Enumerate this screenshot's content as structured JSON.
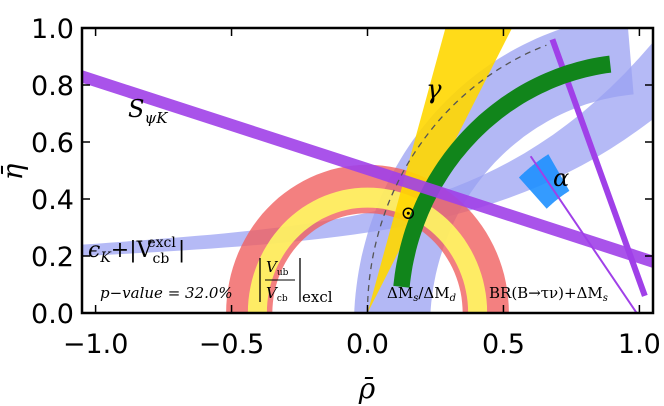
{
  "chart_data": {
    "type": "area",
    "xlabel": "ρ̄",
    "ylabel": "η̄",
    "xlim": [
      -1.05,
      1.05
    ],
    "ylim": [
      0.0,
      1.0
    ],
    "xticks": [
      "−1.0",
      "−0.5",
      "0.0",
      "0.5",
      "1.0"
    ],
    "xtick_values": [
      -1.0,
      -0.5,
      0.0,
      0.5,
      1.0
    ],
    "yticks": [
      "0.0",
      "0.2",
      "0.4",
      "0.6",
      "0.8",
      "1.0"
    ],
    "ytick_values": [
      0.0,
      0.2,
      0.4,
      0.6,
      0.8,
      1.0
    ],
    "grid": false,
    "apex": {
      "rho": 0.15,
      "eta": 0.35
    },
    "constraints": [
      {
        "name": "S_ψK",
        "color": "#a040e8",
        "shape": "line-band",
        "line": [
          [
            -1.05,
            0.83
          ],
          [
            1.05,
            0.18
          ]
        ],
        "halfwidth": 0.022
      },
      {
        "name": "γ",
        "color": "#ffd700",
        "shape": "wedge",
        "apex": [
          0.0,
          0.0
        ],
        "angle_deg": [
          62,
          74
        ],
        "r": 1.3
      },
      {
        "name": "α",
        "color": "#1e90ff",
        "shape": "wedge-arc",
        "apex": [
          1.0,
          0.0
        ],
        "angle_deg": [
          121,
          133
        ],
        "r": [
          0.5,
          0.65
        ]
      },
      {
        "name": "ΔM_s/ΔM_d",
        "color": "#11851b",
        "shape": "annulus",
        "center": [
          1.0,
          0.0
        ],
        "r": [
          0.85,
          0.91
        ],
        "angle_deg": [
          90,
          180
        ]
      },
      {
        "name": "BR(B→τν)+ΔM_s",
        "color": "#9aa0f2",
        "shape": "annulus",
        "center": [
          1.05,
          -0.05
        ],
        "r": [
          0.82,
          1.1
        ],
        "angle_deg": [
          95,
          178
        ]
      },
      {
        "name": "|V_ub/V_cb|_excl",
        "color": "#f06060",
        "shape": "annulus",
        "center": [
          0.0,
          0.0
        ],
        "r": [
          0.35,
          0.52
        ],
        "angle_deg": [
          0,
          180
        ]
      },
      {
        "name": "|V_ub/V_cb|_excl inner",
        "color": "#ffff60",
        "shape": "annulus",
        "center": [
          0.0,
          0.0
        ],
        "r": [
          0.37,
          0.44
        ],
        "angle_deg": [
          0,
          180
        ]
      },
      {
        "name": "ε_K+|V_cb^excl|",
        "color": "#a8aef5",
        "shape": "hyperbola-band",
        "eta_range": [
          [
            0.2,
            0.24
          ],
          [
            0.33,
            0.4
          ]
        ]
      }
    ],
    "labels": {
      "spsik": "S",
      "spsik_sub": "ψK",
      "gamma": "γ",
      "alpha": "α",
      "epsk_a": "ϵ",
      "epsk_b": "K",
      "epsk_c": "+|V",
      "epsk_d": "cb",
      "epsk_e": "excl",
      "epsk_f": "|",
      "pvalue": "p−value =  32.0%",
      "vub_num": "V",
      "vub_num_sub": "ub",
      "vub_den": "V",
      "vub_den_sub": "cb",
      "vub_excl": "excl",
      "dms": "ΔM",
      "dms_sub1": "s",
      "dms_mid": "/ΔM",
      "dms_sub2": "d",
      "br": "BR(B→τν)+ΔM",
      "br_sub": "s"
    }
  }
}
